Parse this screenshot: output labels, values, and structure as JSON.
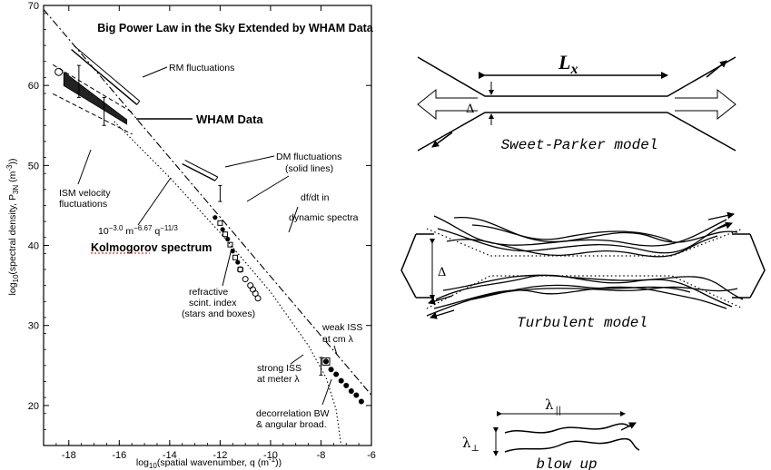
{
  "left_figure": {
    "title": "Big Power Law in the Sky Extended by WHAM Data",
    "xlabel": "log10(spatial wavenumber, q (m^-1))",
    "ylabel": "log10(spectral density, P3N (m^-3))",
    "labels": {
      "rm": "RM fluctuations",
      "wham": "WHAM Data",
      "ism1": "ISM velocity",
      "ism2": "fluctuations",
      "dm1": "DM fluctuations",
      "dm2": "(solid lines)",
      "dfdt1": "df/dt in",
      "dfdt2": "dynamic spectra",
      "formula": "10^-3.0 m^-6.67 q^-11/3",
      "kolmogorov": "Kolmogorov spectrum",
      "refr1": "refractive",
      "refr2": "scint. index",
      "refr3": "(stars and boxes)",
      "weak1": "weak ISS",
      "weak2": "at cm λ",
      "strong1": "strong ISS",
      "strong2": "at meter λ",
      "decor1": "decorrelation BW",
      "decor2": "& angular broad."
    }
  },
  "chart_data": {
    "type": "line",
    "title": "Big Power Law in the Sky Extended by WHAM Data",
    "xlabel": "log10(spatial wavenumber, q (m^-1))",
    "ylabel": "log10(spectral density, P3N (m^-3))",
    "xlim": [
      -19,
      -6
    ],
    "ylim": [
      15,
      70
    ],
    "xticks": [
      -18,
      -16,
      -14,
      -12,
      -10,
      -8,
      -6
    ],
    "yticks": [
      20,
      30,
      40,
      50,
      60,
      70
    ],
    "grid": false,
    "series": [
      {
        "name": "Kolmogorov spectrum",
        "style": "dash-dot",
        "x": [
          -19,
          -6
        ],
        "y": [
          69.5,
          21.3
        ]
      },
      {
        "name": "",
        "style": "dotted",
        "x": [
          -16.2,
          -14,
          -12,
          -10,
          -8.5,
          -7.8,
          -7.4,
          -7.2
        ],
        "y": [
          55.5,
          48.5,
          41.6,
          34.2,
          27.5,
          23.5,
          19.5,
          15
        ]
      },
      {
        "name": "RM fluctuations",
        "style": "solid",
        "x": [
          -17.9,
          -15.3
        ],
        "y": [
          64.5,
          57.6
        ]
      },
      {
        "name": "DM fluctuations",
        "style": "solid",
        "x": [
          -13.5,
          -12.2
        ],
        "y": [
          50.2,
          48.1
        ]
      },
      {
        "name": "WHAM Data",
        "style": "band",
        "x": [
          -18.2,
          -15.7
        ],
        "y": [
          61,
          55.5
        ]
      }
    ],
    "points": {
      "refractive": {
        "x": [
          -12.2,
          -12.0,
          -11.9,
          -11.8,
          -11.7,
          -11.6,
          -11.5,
          -11.4,
          -11.3,
          -11.2
        ],
        "y": [
          43.5,
          42.8,
          42.0,
          41.4,
          40.8,
          40.1,
          39.3,
          38.5,
          37.9,
          37.0
        ]
      },
      "dfdt": {
        "x": [
          -11.2,
          -11.0,
          -10.8,
          -10.7,
          -10.6,
          -10.5
        ],
        "y": [
          37.0,
          35.8,
          35.0,
          34.5,
          34.0,
          33.4
        ]
      },
      "iss": {
        "x": [
          -7.8,
          -7.6,
          -7.4,
          -7.2,
          -7.0,
          -6.8,
          -6.6,
          -6.4
        ],
        "y": [
          25.5,
          24.5,
          23.9,
          23.1,
          22.5,
          21.8,
          21.3,
          20.5
        ]
      }
    }
  },
  "sweet_parker": {
    "lx_label": "L",
    "lx_sub": "x",
    "delta": "Δ",
    "caption": "Sweet-Parker model"
  },
  "turbulent": {
    "delta": "Δ",
    "caption": "Turbulent model"
  },
  "blowup": {
    "lpar": "λ",
    "lpar_sub": "||",
    "lperp": "λ",
    "lperp_sub": "⊥",
    "caption": "blow up"
  }
}
